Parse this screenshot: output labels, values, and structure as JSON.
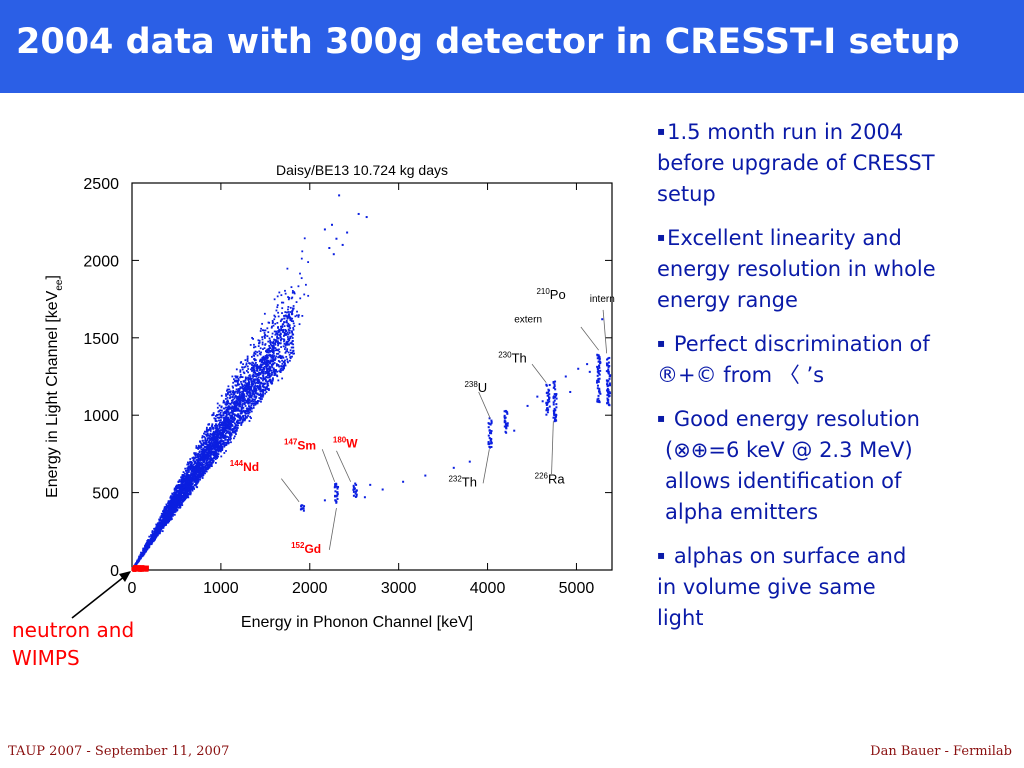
{
  "slide": {
    "title": "2004 data with 300g detector in CRESST-I setup",
    "bullets": [
      {
        "marker": "▪",
        "lines": [
          "1.5 month run in 2004",
          "before upgrade of CRESST",
          "setup"
        ]
      },
      {
        "marker": "▪",
        "lines": [
          "Excellent linearity and",
          "energy resolution in whole",
          "energy range"
        ]
      },
      {
        "marker": "▪",
        "lines": [
          " Perfect discrimination of",
          "®+© from 〈 ’s"
        ]
      },
      {
        "marker": "▪",
        "lines": [
          " Good energy resolution",
          "(⊗⊕=6 keV @ 2.3 MeV)",
          "allows identification of",
          "alpha emitters"
        ]
      },
      {
        "marker": "▪",
        "lines": [
          " alphas on surface and",
          "in volume give same",
          "light"
        ]
      }
    ],
    "caption_lines": [
      "neutron and",
      "WIMPS"
    ],
    "footer_left": "TAUP 2007 - September 11, 2007",
    "footer_right": "Dan Bauer - Fermilab",
    "colors": {
      "header_bg": "#2b5fe6",
      "points": "#0b1fe0",
      "wimp_points": "#ff0000",
      "bullet_text": "#0a1aa8",
      "caption": "#ff0000",
      "footer": "#8a1010",
      "red_labels": "#ff0000"
    }
  },
  "chart_data": {
    "type": "scatter",
    "title": "Daisy/BE13 10.724 kg days",
    "xlabel": "Energy in Phonon Channel [keV]",
    "ylabel": "Energy in Light Channel [keV",
    "ylabel_sub": "ee",
    "ylabel_close": "]",
    "xlim": [
      0,
      5400
    ],
    "ylim": [
      0,
      2500
    ],
    "xticks": [
      0,
      1000,
      2000,
      3000,
      4000,
      5000
    ],
    "yticks": [
      0,
      500,
      1000,
      1500,
      2000,
      2500
    ],
    "xtick_labels": [
      "0",
      "1000",
      "2000",
      "3000",
      "4000",
      "5000"
    ],
    "ytick_labels": [
      "0",
      "500",
      "1000",
      "1500",
      "2000",
      "2500"
    ],
    "grid": false,
    "electron_band": {
      "light_to_phonon_upper": 1.12,
      "light_to_phonon_lower": 0.72,
      "max_phonon": 2000
    },
    "alpha_lines": [
      {
        "x": 1920,
        "ymin": 370,
        "ymax": 430
      },
      {
        "x": 2300,
        "ymin": 420,
        "ymax": 560
      },
      {
        "x": 2510,
        "ymin": 460,
        "ymax": 560
      },
      {
        "x": 4030,
        "ymin": 790,
        "ymax": 980
      },
      {
        "x": 4210,
        "ymin": 880,
        "ymax": 1030
      },
      {
        "x": 4680,
        "ymin": 1000,
        "ymax": 1200
      },
      {
        "x": 4760,
        "ymin": 960,
        "ymax": 1220
      },
      {
        "x": 5250,
        "ymin": 1080,
        "ymax": 1400
      },
      {
        "x": 5360,
        "ymin": 1050,
        "ymax": 1380
      }
    ],
    "scattered_points": [
      {
        "x": 2170,
        "y": 2200
      },
      {
        "x": 2250,
        "y": 2230
      },
      {
        "x": 2420,
        "y": 2180
      },
      {
        "x": 2300,
        "y": 2140
      },
      {
        "x": 2550,
        "y": 2300
      },
      {
        "x": 2640,
        "y": 2280
      },
      {
        "x": 2270,
        "y": 2040
      },
      {
        "x": 2370,
        "y": 2100
      },
      {
        "x": 2220,
        "y": 2080
      },
      {
        "x": 2330,
        "y": 2420
      },
      {
        "x": 2680,
        "y": 550
      },
      {
        "x": 2820,
        "y": 520
      },
      {
        "x": 3050,
        "y": 570
      },
      {
        "x": 3300,
        "y": 610
      },
      {
        "x": 3620,
        "y": 660
      },
      {
        "x": 3800,
        "y": 700
      },
      {
        "x": 2620,
        "y": 470
      },
      {
        "x": 2170,
        "y": 450
      },
      {
        "x": 4450,
        "y": 1060
      },
      {
        "x": 4560,
        "y": 1120
      },
      {
        "x": 4880,
        "y": 1250
      },
      {
        "x": 5020,
        "y": 1300
      },
      {
        "x": 5120,
        "y": 1330
      },
      {
        "x": 4930,
        "y": 1150
      },
      {
        "x": 5290,
        "y": 1620
      },
      {
        "x": 4620,
        "y": 1090
      },
      {
        "x": 5150,
        "y": 1280
      },
      {
        "x": 4300,
        "y": 900
      }
    ],
    "wimp_region": {
      "xmin": 0,
      "xmax": 170,
      "ymin": 0,
      "ymax": 20
    },
    "annotations": [
      {
        "mass": "144",
        "element": "Nd",
        "x": 1100,
        "y": 640,
        "red": true
      },
      {
        "mass": "147",
        "element": "Sm",
        "x": 1710,
        "y": 780,
        "red": true
      },
      {
        "mass": "180",
        "element": "W",
        "x": 2260,
        "y": 790,
        "red": true
      },
      {
        "mass": "152",
        "element": "Gd",
        "x": 1790,
        "y": 110,
        "red": true
      },
      {
        "mass": "232",
        "element": "Th",
        "x": 3560,
        "y": 540,
        "red": false
      },
      {
        "mass": "238",
        "element": "U",
        "x": 3740,
        "y": 1150,
        "red": false
      },
      {
        "mass": "230",
        "element": "Th",
        "x": 4120,
        "y": 1340,
        "red": false
      },
      {
        "mass": "226",
        "element": "Ra",
        "x": 4530,
        "y": 560,
        "red": false
      },
      {
        "mass": "210",
        "element": "Po",
        "x": 4550,
        "y": 1750,
        "red": false
      }
    ],
    "po_labels": {
      "extern": "extern",
      "intern": "intern"
    }
  }
}
